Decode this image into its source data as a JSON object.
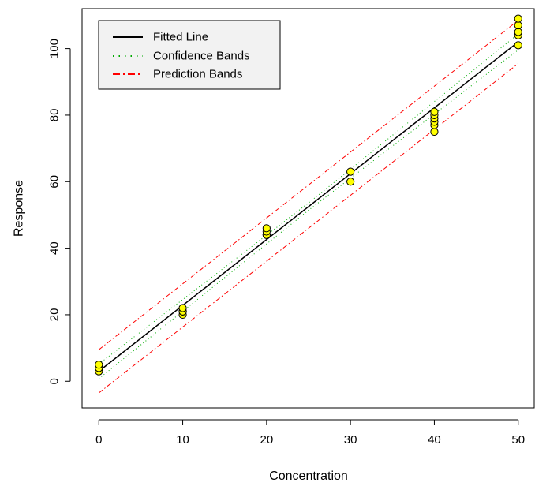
{
  "chart_data": {
    "type": "scatter",
    "title": "",
    "xlabel": "Concentration",
    "ylabel": "Response",
    "xlim": [
      -2,
      52
    ],
    "ylim": [
      -8,
      112
    ],
    "x_ticks": [
      0,
      10,
      20,
      30,
      40,
      50
    ],
    "x_tick_labels": [
      "0",
      "10",
      "20",
      "30",
      "40",
      "50"
    ],
    "y_ticks": [
      0,
      20,
      40,
      60,
      80,
      100
    ],
    "y_tick_labels": [
      "0",
      "20",
      "40",
      "60",
      "80",
      "100"
    ],
    "grid": false,
    "legend_position": "top-left",
    "legend": [
      {
        "label": "Fitted Line",
        "style": "solid",
        "color": "#000000"
      },
      {
        "label": "Confidence Bands",
        "style": "dotted",
        "color": "#00aa00"
      },
      {
        "label": "Prediction Bands",
        "style": "dashdot",
        "color": "#ff0000"
      }
    ],
    "points": {
      "x": [
        0,
        0,
        0,
        0,
        10,
        10,
        10,
        10,
        20,
        20,
        20,
        20,
        30,
        30,
        40,
        40,
        40,
        40,
        40,
        40,
        50,
        50,
        50,
        50,
        50
      ],
      "y": [
        3,
        4,
        4,
        5,
        20,
        21,
        21,
        22,
        44,
        44,
        45,
        46,
        60,
        63,
        75,
        77,
        78,
        79,
        80,
        81,
        101,
        104,
        105,
        107,
        109
      ],
      "fill": "#ffff00",
      "stroke": "#000000"
    },
    "fitted_line": {
      "x": [
        0,
        50
      ],
      "y": [
        3.0,
        102.0
      ]
    },
    "confidence_bands": {
      "lower": {
        "x": [
          0,
          25,
          50
        ],
        "y": [
          0.8,
          51.4,
          99.6
        ]
      },
      "upper": {
        "x": [
          0,
          25,
          50
        ],
        "y": [
          5.2,
          53.6,
          104.4
        ]
      }
    },
    "prediction_bands": {
      "lower": {
        "x": [
          0,
          50
        ],
        "y": [
          -3.5,
          95.5
        ]
      },
      "upper": {
        "x": [
          0,
          50
        ],
        "y": [
          9.5,
          108.5
        ]
      }
    }
  }
}
